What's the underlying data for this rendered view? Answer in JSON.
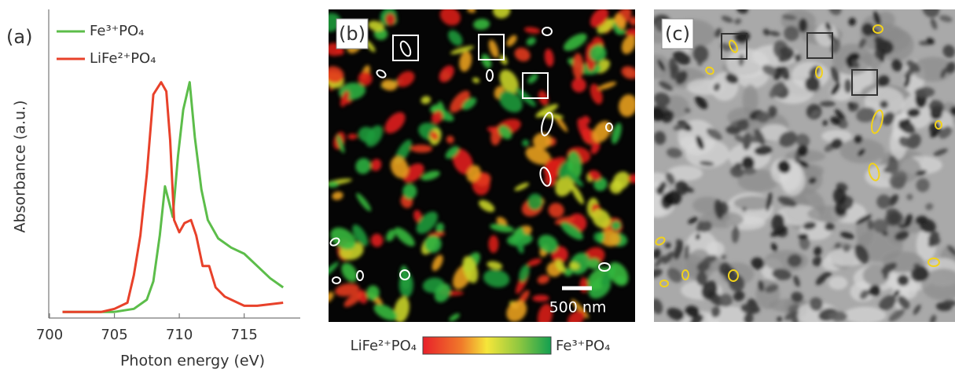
{
  "chart_data": {
    "type": "line",
    "panel_label": "(a)",
    "x_label": "Photon energy (eV)",
    "y_label": "Absorbance (a.u.)",
    "xlim": [
      700,
      719.2
    ],
    "xticks": [
      700,
      705,
      710,
      715
    ],
    "ylim": [
      0,
      1
    ],
    "series": [
      {
        "name": "Fe³⁺PO₄",
        "color": "#5cbd4a",
        "x": [
          701,
          703,
          705,
          706.5,
          707.5,
          708,
          708.5,
          708.9,
          709.2,
          709.5,
          709.9,
          710.3,
          710.8,
          711.2,
          711.7,
          712.2,
          713,
          714,
          715,
          716,
          717,
          718
        ],
        "values": [
          0.02,
          0.02,
          0.02,
          0.03,
          0.06,
          0.12,
          0.27,
          0.43,
          0.38,
          0.33,
          0.53,
          0.68,
          0.77,
          0.59,
          0.42,
          0.32,
          0.26,
          0.23,
          0.21,
          0.17,
          0.13,
          0.1
        ]
      },
      {
        "name": "LiFe²⁺PO₄",
        "color": "#e8412a",
        "x": [
          701,
          704,
          705,
          706,
          706.5,
          707,
          707.5,
          708,
          708.6,
          709,
          709.3,
          709.6,
          710,
          710.4,
          710.9,
          711.3,
          711.8,
          712.3,
          712.8,
          713.5,
          714.5,
          715,
          716,
          718
        ],
        "values": [
          0.02,
          0.02,
          0.03,
          0.05,
          0.14,
          0.27,
          0.47,
          0.73,
          0.77,
          0.74,
          0.58,
          0.32,
          0.28,
          0.31,
          0.32,
          0.27,
          0.17,
          0.17,
          0.1,
          0.07,
          0.05,
          0.04,
          0.04,
          0.05
        ]
      }
    ]
  },
  "panel_b": {
    "label": "(b)",
    "scale_bar": "500 nm",
    "colorbar_left": "LiFe²⁺PO₄",
    "colorbar_right": "Fe³⁺PO₄"
  },
  "panel_c": {
    "label": "(c)"
  }
}
